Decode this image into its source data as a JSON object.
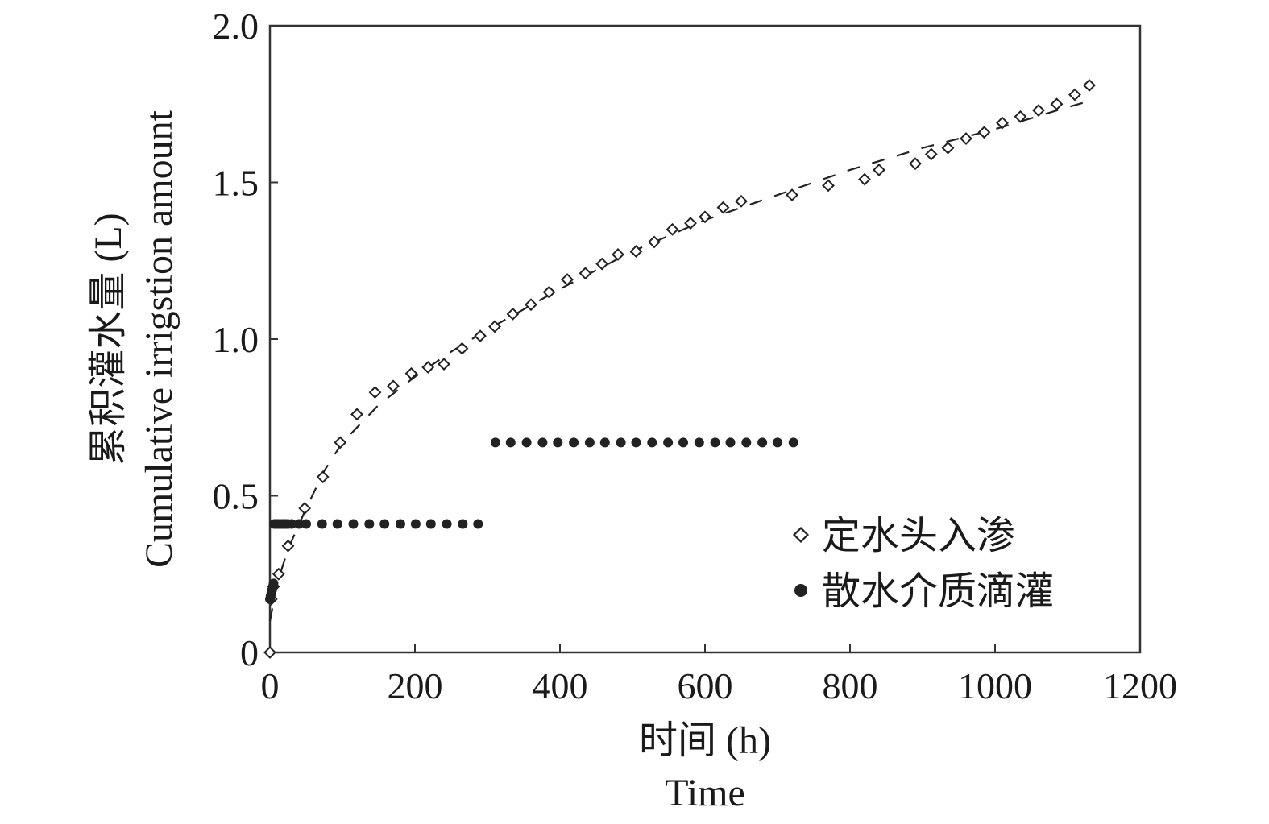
{
  "chart_data": {
    "type": "scatter",
    "xlabel_cn": "时间 (h)",
    "xlabel_en": "Time",
    "ylabel_cn": "累积灌水量 (L)",
    "ylabel_en": "Cumulative irrigstion amount",
    "xlim": [
      0,
      1200
    ],
    "ylim": [
      0,
      2.0
    ],
    "xticks": [
      0,
      200,
      400,
      600,
      800,
      1000,
      1200
    ],
    "yticks": [
      0,
      0.5,
      1.0,
      1.5,
      2.0
    ],
    "xtick_labels": [
      "0",
      "200",
      "400",
      "600",
      "800",
      "1000",
      "1200"
    ],
    "ytick_labels": [
      "0",
      "0.5",
      "1.0",
      "1.5",
      "2.0"
    ],
    "grid": false,
    "legend_position": "bottom-right",
    "series": [
      {
        "name": "定水头入渗",
        "marker": "diamond-open",
        "color": "#222222",
        "x": [
          0,
          2,
          5,
          12,
          25,
          48,
          73,
          97,
          120,
          145,
          170,
          195,
          218,
          240,
          265,
          290,
          310,
          335,
          360,
          385,
          410,
          435,
          458,
          480,
          505,
          530,
          555,
          580,
          600,
          625,
          650,
          720,
          770,
          820,
          840,
          890,
          912,
          935,
          960,
          985,
          1010,
          1035,
          1060,
          1085,
          1110,
          1130
        ],
        "y": [
          0,
          0.17,
          0.21,
          0.25,
          0.34,
          0.46,
          0.56,
          0.67,
          0.76,
          0.83,
          0.85,
          0.89,
          0.91,
          0.92,
          0.97,
          1.01,
          1.04,
          1.08,
          1.11,
          1.15,
          1.19,
          1.21,
          1.24,
          1.27,
          1.28,
          1.31,
          1.35,
          1.37,
          1.39,
          1.42,
          1.44,
          1.46,
          1.49,
          1.51,
          1.54,
          1.56,
          1.59,
          1.61,
          1.64,
          1.66,
          1.69,
          1.71,
          1.73,
          1.75,
          1.78,
          1.81
        ]
      },
      {
        "name": "散水介质滴灌",
        "marker": "circle-filled",
        "color": "#222222",
        "x": [
          0,
          1,
          2,
          3,
          4,
          5,
          6,
          8,
          10,
          12,
          15,
          18,
          20,
          22,
          25,
          30,
          40,
          50,
          72,
          93,
          115,
          137,
          158,
          180,
          201,
          222,
          244,
          266,
          287,
          311,
          332,
          354,
          376,
          397,
          419,
          441,
          462,
          484,
          505,
          527,
          549,
          570,
          592,
          614,
          635,
          657,
          679,
          700,
          722
        ],
        "y": [
          0.17,
          0.18,
          0.19,
          0.2,
          0.21,
          0.22,
          0.41,
          0.41,
          0.41,
          0.41,
          0.41,
          0.41,
          0.41,
          0.41,
          0.41,
          0.41,
          0.41,
          0.41,
          0.41,
          0.41,
          0.41,
          0.41,
          0.41,
          0.41,
          0.41,
          0.41,
          0.41,
          0.41,
          0.41,
          0.67,
          0.67,
          0.67,
          0.67,
          0.67,
          0.67,
          0.67,
          0.67,
          0.67,
          0.67,
          0.67,
          0.67,
          0.67,
          0.67,
          0.67,
          0.67,
          0.67,
          0.67,
          0.67,
          0.67
        ]
      },
      {
        "marker": "dashed-line",
        "color": "#222222",
        "x": [
          0,
          10,
          25,
          50,
          75,
          100,
          150,
          200,
          250,
          300,
          400,
          500,
          600,
          700,
          800,
          900,
          1000,
          1100,
          1130
        ],
        "y": [
          0.1,
          0.22,
          0.33,
          0.46,
          0.58,
          0.67,
          0.79,
          0.88,
          0.96,
          1.03,
          1.16,
          1.28,
          1.38,
          1.46,
          1.54,
          1.61,
          1.67,
          1.74,
          1.76
        ]
      }
    ]
  }
}
